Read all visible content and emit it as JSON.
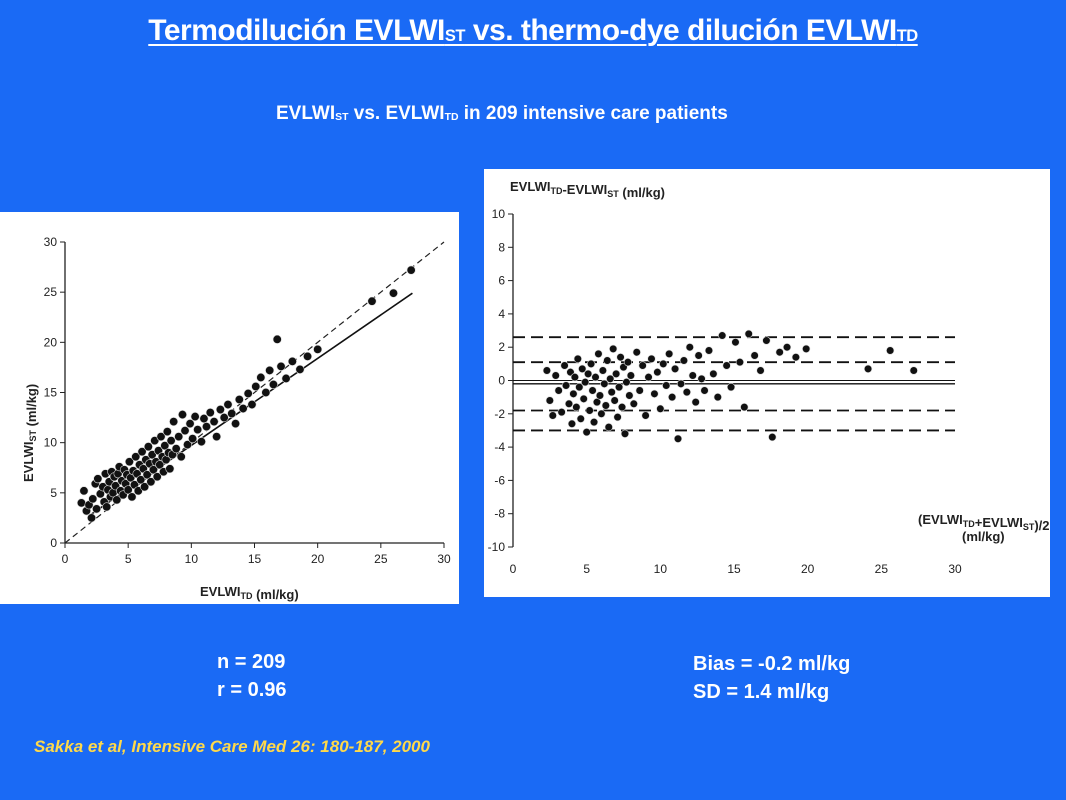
{
  "header": {
    "title_main": "Termodilución EVLWI",
    "title_sub1": "ST",
    "title_mid": " vs. thermo-dye dilución EVLWI",
    "title_sub2": "TD"
  },
  "subtitle": {
    "part1": "EVLWI",
    "sub1": "ST",
    "part2": " vs. EVLWI",
    "sub2": "TD",
    "part3": " in 209 intensive care patients"
  },
  "stats_left": {
    "n": "n = 209",
    "r": "r = 0.96"
  },
  "stats_right": {
    "bias": "Bias = -0.2 ml/kg",
    "sd": "SD = 1.4 ml/kg"
  },
  "citation": "Sakka et al, Intensive Care Med 26: 180-187, 2000",
  "colors": {
    "background": "#1a6af5",
    "citation": "#ffd94a",
    "text": "#ffffff"
  },
  "chart_data": [
    {
      "type": "scatter",
      "xlabel": "EVLWI_TD (ml/kg)",
      "ylabel": "EVLWI_ST (ml/kg)",
      "xlim": [
        0,
        30
      ],
      "ylim": [
        0,
        30
      ],
      "xticks": [
        "0",
        "5",
        "10",
        "15",
        "20",
        "25",
        "30"
      ],
      "yticks": [
        "0",
        "5",
        "10",
        "15",
        "20",
        "25",
        "30"
      ],
      "identity_line": {
        "style": "dashed",
        "x": [
          0,
          30
        ],
        "y": [
          0,
          30
        ]
      },
      "regression_line": {
        "style": "solid",
        "x": [
          2,
          27.5
        ],
        "y": [
          2.8,
          24.9
        ]
      },
      "points": [
        [
          1.3,
          4.0
        ],
        [
          1.5,
          5.2
        ],
        [
          1.7,
          3.2
        ],
        [
          1.9,
          3.8
        ],
        [
          2.1,
          2.5
        ],
        [
          2.2,
          4.4
        ],
        [
          2.4,
          5.9
        ],
        [
          2.5,
          3.4
        ],
        [
          2.6,
          6.4
        ],
        [
          2.8,
          4.9
        ],
        [
          3.0,
          5.6
        ],
        [
          3.1,
          4.1
        ],
        [
          3.2,
          6.9
        ],
        [
          3.3,
          3.6
        ],
        [
          3.4,
          5.3
        ],
        [
          3.5,
          6.1
        ],
        [
          3.6,
          4.6
        ],
        [
          3.7,
          7.1
        ],
        [
          3.8,
          5.0
        ],
        [
          3.9,
          6.6
        ],
        [
          4.0,
          5.7
        ],
        [
          4.1,
          4.3
        ],
        [
          4.2,
          6.9
        ],
        [
          4.3,
          7.6
        ],
        [
          4.4,
          5.2
        ],
        [
          4.5,
          6.2
        ],
        [
          4.6,
          4.8
        ],
        [
          4.7,
          7.3
        ],
        [
          4.8,
          5.9
        ],
        [
          4.9,
          6.8
        ],
        [
          5.0,
          5.3
        ],
        [
          5.1,
          8.1
        ],
        [
          5.2,
          6.5
        ],
        [
          5.3,
          4.6
        ],
        [
          5.4,
          7.2
        ],
        [
          5.5,
          5.8
        ],
        [
          5.6,
          8.6
        ],
        [
          5.7,
          6.9
        ],
        [
          5.8,
          5.2
        ],
        [
          5.9,
          7.8
        ],
        [
          6.0,
          6.3
        ],
        [
          6.1,
          9.1
        ],
        [
          6.2,
          7.4
        ],
        [
          6.3,
          5.6
        ],
        [
          6.4,
          8.3
        ],
        [
          6.5,
          6.8
        ],
        [
          6.6,
          9.6
        ],
        [
          6.7,
          7.9
        ],
        [
          6.8,
          6.1
        ],
        [
          6.9,
          8.8
        ],
        [
          7.0,
          7.3
        ],
        [
          7.1,
          10.2
        ],
        [
          7.2,
          8.1
        ],
        [
          7.3,
          6.6
        ],
        [
          7.4,
          9.2
        ],
        [
          7.5,
          7.8
        ],
        [
          7.6,
          10.6
        ],
        [
          7.7,
          8.6
        ],
        [
          7.8,
          7.1
        ],
        [
          7.9,
          9.7
        ],
        [
          8.0,
          8.3
        ],
        [
          8.1,
          11.1
        ],
        [
          8.2,
          9.0
        ],
        [
          8.3,
          7.4
        ],
        [
          8.4,
          10.2
        ],
        [
          8.5,
          8.8
        ],
        [
          8.6,
          12.1
        ],
        [
          8.8,
          9.4
        ],
        [
          9.0,
          10.6
        ],
        [
          9.2,
          8.6
        ],
        [
          9.3,
          12.8
        ],
        [
          9.5,
          11.2
        ],
        [
          9.7,
          9.8
        ],
        [
          9.9,
          11.9
        ],
        [
          10.1,
          10.4
        ],
        [
          10.3,
          12.6
        ],
        [
          10.5,
          11.3
        ],
        [
          10.8,
          10.1
        ],
        [
          11.0,
          12.4
        ],
        [
          11.2,
          11.6
        ],
        [
          11.5,
          13.0
        ],
        [
          11.8,
          12.1
        ],
        [
          12.0,
          10.6
        ],
        [
          12.3,
          13.3
        ],
        [
          12.6,
          12.5
        ],
        [
          12.9,
          13.8
        ],
        [
          13.2,
          12.9
        ],
        [
          13.5,
          11.9
        ],
        [
          13.8,
          14.3
        ],
        [
          14.1,
          13.4
        ],
        [
          14.5,
          14.9
        ],
        [
          14.8,
          13.8
        ],
        [
          15.1,
          15.6
        ],
        [
          15.5,
          16.5
        ],
        [
          15.9,
          15.0
        ],
        [
          16.2,
          17.2
        ],
        [
          16.5,
          15.8
        ],
        [
          16.8,
          20.3
        ],
        [
          17.1,
          17.6
        ],
        [
          17.5,
          16.4
        ],
        [
          18.0,
          18.1
        ],
        [
          18.6,
          17.3
        ],
        [
          19.2,
          18.6
        ],
        [
          20.0,
          19.3
        ],
        [
          24.3,
          24.1
        ],
        [
          26.0,
          24.9
        ],
        [
          27.4,
          27.2
        ]
      ]
    },
    {
      "type": "scatter",
      "ylabel": "EVLWI_TD-EVLWI_ST (ml/kg)",
      "xlabel": "(EVLWI_TD+EVLWI_ST)/2 (ml/kg)",
      "xlim": [
        0,
        30
      ],
      "ylim": [
        -10,
        10
      ],
      "xticks": [
        "0",
        "5",
        "10",
        "15",
        "20",
        "25",
        "30"
      ],
      "yticks": [
        "10",
        "8",
        "6",
        "4",
        "2",
        "0",
        "-2",
        "-4",
        "-6",
        "-8",
        "-10"
      ],
      "reference_lines": [
        {
          "y": 2.6,
          "style": "dashed"
        },
        {
          "y": 1.1,
          "style": "dashed"
        },
        {
          "y": -0.2,
          "style": "solid"
        },
        {
          "y": -1.8,
          "style": "dashed"
        },
        {
          "y": -3.0,
          "style": "dashed"
        }
      ],
      "points": [
        [
          2.3,
          0.6
        ],
        [
          2.5,
          -1.2
        ],
        [
          2.7,
          -2.1
        ],
        [
          2.9,
          0.3
        ],
        [
          3.1,
          -0.6
        ],
        [
          3.3,
          -1.9
        ],
        [
          3.5,
          0.9
        ],
        [
          3.6,
          -0.3
        ],
        [
          3.8,
          -1.4
        ],
        [
          3.9,
          0.5
        ],
        [
          4.0,
          -2.6
        ],
        [
          4.1,
          -0.8
        ],
        [
          4.2,
          0.2
        ],
        [
          4.3,
          -1.6
        ],
        [
          4.4,
          1.3
        ],
        [
          4.5,
          -0.4
        ],
        [
          4.6,
          -2.3
        ],
        [
          4.7,
          0.7
        ],
        [
          4.8,
          -1.1
        ],
        [
          4.9,
          -0.1
        ],
        [
          5.0,
          -3.1
        ],
        [
          5.1,
          0.4
        ],
        [
          5.2,
          -1.8
        ],
        [
          5.3,
          1.0
        ],
        [
          5.4,
          -0.6
        ],
        [
          5.5,
          -2.5
        ],
        [
          5.6,
          0.2
        ],
        [
          5.7,
          -1.3
        ],
        [
          5.8,
          1.6
        ],
        [
          5.9,
          -0.9
        ],
        [
          6.0,
          -2.0
        ],
        [
          6.1,
          0.6
        ],
        [
          6.2,
          -0.2
        ],
        [
          6.3,
          -1.5
        ],
        [
          6.4,
          1.2
        ],
        [
          6.5,
          -2.8
        ],
        [
          6.6,
          0.1
        ],
        [
          6.7,
          -0.7
        ],
        [
          6.8,
          1.9
        ],
        [
          6.9,
          -1.2
        ],
        [
          7.0,
          0.4
        ],
        [
          7.1,
          -2.2
        ],
        [
          7.2,
          -0.4
        ],
        [
          7.3,
          1.4
        ],
        [
          7.4,
          -1.6
        ],
        [
          7.5,
          0.8
        ],
        [
          7.6,
          -3.2
        ],
        [
          7.7,
          -0.1
        ],
        [
          7.8,
          1.1
        ],
        [
          7.9,
          -0.9
        ],
        [
          8.0,
          0.3
        ],
        [
          8.2,
          -1.4
        ],
        [
          8.4,
          1.7
        ],
        [
          8.6,
          -0.6
        ],
        [
          8.8,
          0.9
        ],
        [
          9.0,
          -2.1
        ],
        [
          9.2,
          0.2
        ],
        [
          9.4,
          1.3
        ],
        [
          9.6,
          -0.8
        ],
        [
          9.8,
          0.5
        ],
        [
          10.0,
          -1.7
        ],
        [
          10.2,
          1.0
        ],
        [
          10.4,
          -0.3
        ],
        [
          10.6,
          1.6
        ],
        [
          10.8,
          -1.0
        ],
        [
          11.0,
          0.7
        ],
        [
          11.2,
          -3.5
        ],
        [
          11.4,
          -0.2
        ],
        [
          11.6,
          1.2
        ],
        [
          11.8,
          -0.7
        ],
        [
          12.0,
          2.0
        ],
        [
          12.2,
          0.3
        ],
        [
          12.4,
          -1.3
        ],
        [
          12.6,
          1.5
        ],
        [
          12.8,
          0.1
        ],
        [
          13.0,
          -0.6
        ],
        [
          13.3,
          1.8
        ],
        [
          13.6,
          0.4
        ],
        [
          13.9,
          -1.0
        ],
        [
          14.2,
          2.7
        ],
        [
          14.5,
          0.9
        ],
        [
          14.8,
          -0.4
        ],
        [
          15.1,
          2.3
        ],
        [
          15.4,
          1.1
        ],
        [
          15.7,
          -1.6
        ],
        [
          16.0,
          2.8
        ],
        [
          16.4,
          1.5
        ],
        [
          16.8,
          0.6
        ],
        [
          17.2,
          2.4
        ],
        [
          17.6,
          -3.4
        ],
        [
          18.1,
          1.7
        ],
        [
          18.6,
          2.0
        ],
        [
          19.2,
          1.4
        ],
        [
          19.9,
          1.9
        ],
        [
          24.1,
          0.7
        ],
        [
          25.6,
          1.8
        ],
        [
          27.2,
          0.6
        ]
      ]
    }
  ]
}
